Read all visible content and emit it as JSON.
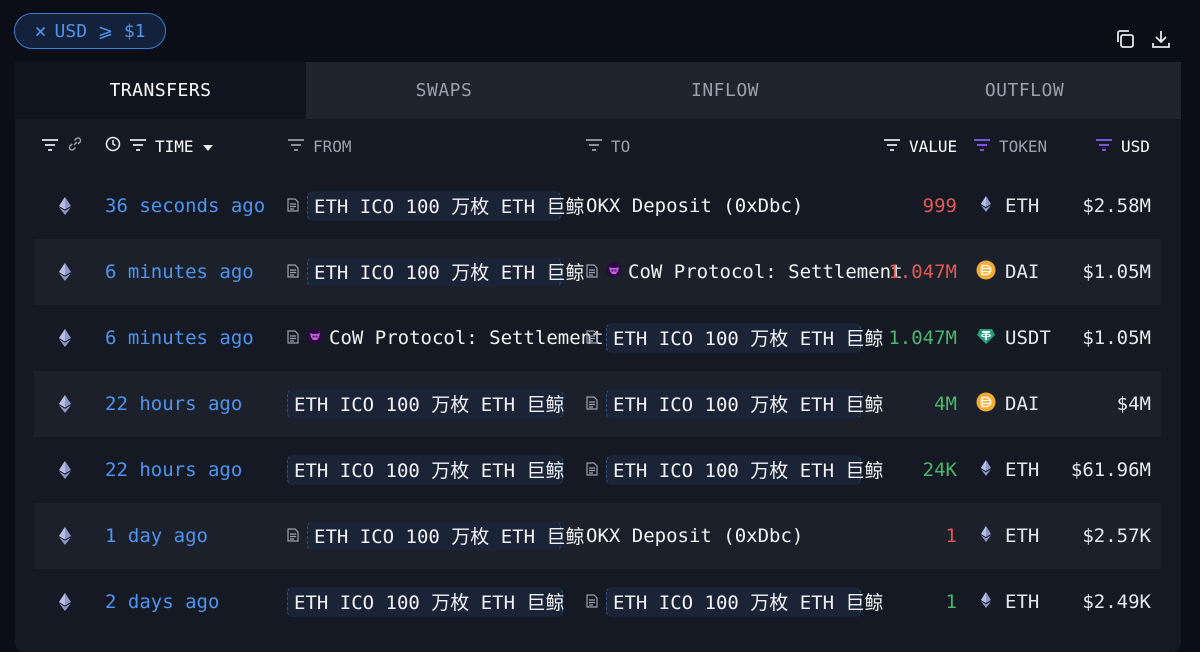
{
  "filter": {
    "label": "USD ⩾ $1",
    "close": "×"
  },
  "toolbar": {
    "icons": [
      "copy-icon",
      "download-icon"
    ]
  },
  "tabs": [
    "TRANSFERS",
    "SWAPS",
    "INFLOW",
    "OUTFLOW"
  ],
  "active_tab": "TRANSFERS",
  "columns": {
    "time": "TIME",
    "from": "FROM",
    "to": "TO",
    "value": "VALUE",
    "token": "TOKEN",
    "usd": "USD"
  },
  "colors": {
    "accent": "#4d95f0",
    "negative": "#e05a54",
    "positive": "#4cb56a",
    "filter_active": "#8b5cf6"
  },
  "rows": [
    {
      "time": "36 seconds ago",
      "from": "ETH ICO 100 万枚 ETH 巨鲸",
      "to": "OKX Deposit (0xDbc)",
      "value": "999",
      "value_color": "red",
      "token": "ETH",
      "usd": "$2.58M"
    },
    {
      "time": "6 minutes ago",
      "from": "ETH ICO 100 万枚 ETH 巨鲸",
      "to": "CoW Protocol: Settlement",
      "value": "1.047M",
      "value_color": "red",
      "token": "DAI",
      "usd": "$1.05M"
    },
    {
      "time": "6 minutes ago",
      "from": "CoW Protocol: Settlement",
      "to": "ETH ICO 100 万枚 ETH 巨鲸",
      "value": "1.047M",
      "value_color": "green",
      "token": "USDT",
      "usd": "$1.05M"
    },
    {
      "time": "22 hours ago",
      "from": "ETH ICO 100 万枚 ETH 巨鲸",
      "to": "ETH ICO 100 万枚 ETH 巨鲸",
      "value": "4M",
      "value_color": "green",
      "token": "DAI",
      "usd": "$4M"
    },
    {
      "time": "22 hours ago",
      "from": "ETH ICO 100 万枚 ETH 巨鲸",
      "to": "ETH ICO 100 万枚 ETH 巨鲸",
      "value": "24K",
      "value_color": "green",
      "token": "ETH",
      "usd": "$61.96M"
    },
    {
      "time": "1 day ago",
      "from": "ETH ICO 100 万枚 ETH 巨鲸",
      "to": "OKX Deposit (0xDbc)",
      "value": "1",
      "value_color": "red",
      "token": "ETH",
      "usd": "$2.57K"
    },
    {
      "time": "2 days ago",
      "from": "ETH ICO 100 万枚 ETH 巨鲸",
      "to": "ETH ICO 100 万枚 ETH 巨鲸",
      "value": "1",
      "value_color": "green",
      "token": "ETH",
      "usd": "$2.49K"
    }
  ]
}
